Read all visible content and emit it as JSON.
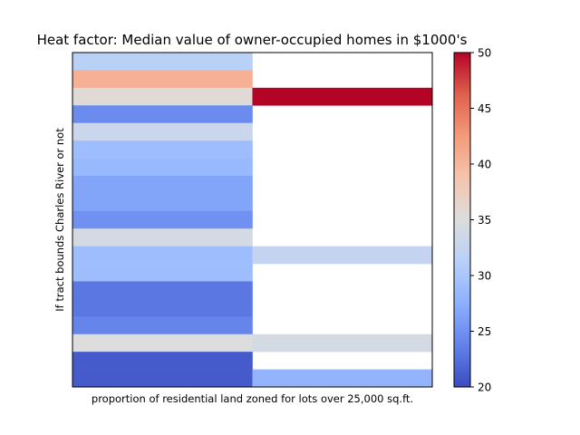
{
  "chart_data": {
    "type": "heatmap",
    "title": "Heat factor: Median value of owner-occupied homes in $1000's",
    "xlabel": "proportion of residential land zoned for lots over 25,000 sq.ft.",
    "ylabel": "If tract bounds Charles River or not",
    "colormap": "coolwarm",
    "clim": [
      20,
      50
    ],
    "colorbar_ticks": [
      "20",
      "25",
      "30",
      "35",
      "40",
      "45",
      "50"
    ],
    "n_rows": 19,
    "n_cols": 2,
    "cells": [
      {
        "row": 0,
        "col": 0,
        "value": 31.5
      },
      {
        "row": 1,
        "col": 0,
        "value": 40.5
      },
      {
        "row": 2,
        "col": 0,
        "value": 35.5
      },
      {
        "row": 2,
        "col": 1,
        "value": 50.0
      },
      {
        "row": 3,
        "col": 0,
        "value": 24.5
      },
      {
        "row": 4,
        "col": 0,
        "value": 33.0
      },
      {
        "row": 5,
        "col": 0,
        "value": 29.0
      },
      {
        "row": 6,
        "col": 0,
        "value": 28.5
      },
      {
        "row": 7,
        "col": 0,
        "value": 26.5
      },
      {
        "row": 8,
        "col": 0,
        "value": 26.5
      },
      {
        "row": 9,
        "col": 0,
        "value": 25.0
      },
      {
        "row": 10,
        "col": 0,
        "value": 34.0
      },
      {
        "row": 11,
        "col": 0,
        "value": 29.0
      },
      {
        "row": 11,
        "col": 1,
        "value": 32.5
      },
      {
        "row": 12,
        "col": 0,
        "value": 29.0
      },
      {
        "row": 13,
        "col": 0,
        "value": 23.0
      },
      {
        "row": 14,
        "col": 0,
        "value": 23.0
      },
      {
        "row": 15,
        "col": 0,
        "value": 24.0
      },
      {
        "row": 16,
        "col": 0,
        "value": 35.0
      },
      {
        "row": 16,
        "col": 1,
        "value": 34.0
      },
      {
        "row": 17,
        "col": 0,
        "value": 21.0
      },
      {
        "row": 18,
        "col": 0,
        "value": 21.0
      },
      {
        "row": 18,
        "col": 1,
        "value": 28.0
      }
    ]
  }
}
